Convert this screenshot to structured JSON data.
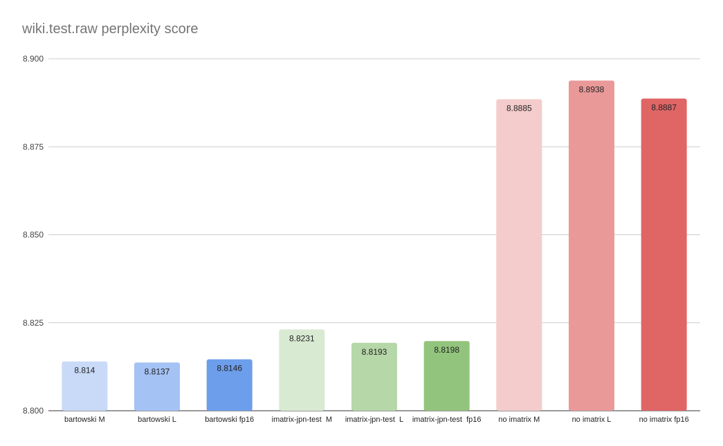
{
  "chart_data": {
    "type": "bar",
    "title": "wiki.test.raw perplexity score",
    "xlabel": "",
    "ylabel": "",
    "ylim": [
      8.8,
      8.9
    ],
    "yticks": [
      "8.800",
      "8.825",
      "8.850",
      "8.875",
      "8.900"
    ],
    "grid": true,
    "legend": "none",
    "categories": [
      "bartowski M",
      "bartowski L",
      "bartowski fp16",
      "imatrix-jpn-test  M",
      "imatrix-jpn-test  L",
      "imatrix-jpn-test  fp16",
      "no imatrix M",
      "no imatrix L",
      "no imatrix fp16"
    ],
    "values": [
      8.814,
      8.8137,
      8.8146,
      8.8231,
      8.8193,
      8.8198,
      8.8885,
      8.8938,
      8.8887
    ],
    "data_labels": [
      "8.814",
      "8.8137",
      "8.8146",
      "8.8231",
      "8.8193",
      "8.8198",
      "8.8885",
      "8.8938",
      "8.8887"
    ],
    "colors": [
      "#c9daf8",
      "#a4c2f4",
      "#6d9eeb",
      "#d9ead3",
      "#b6d7a8",
      "#93c47d",
      "#f4cccc",
      "#ea9999",
      "#e06666"
    ]
  }
}
